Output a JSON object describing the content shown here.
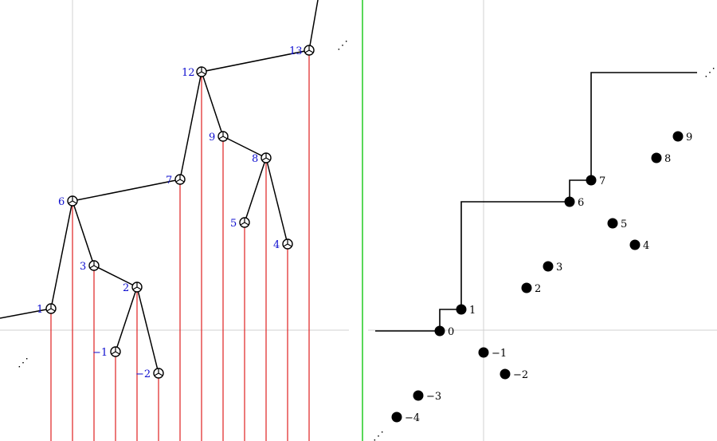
{
  "colors": {
    "axis": "#d0d0d0",
    "divider": "#22cc22",
    "drop_line": "#e02020",
    "tree_edge": "#000000",
    "tree_label": "#1010d0",
    "point": "#000000"
  },
  "tree_nodes": [
    {
      "id": "13",
      "label": "13"
    },
    {
      "id": "12",
      "label": "12"
    },
    {
      "id": "9",
      "label": "9"
    },
    {
      "id": "8",
      "label": "8"
    },
    {
      "id": "7",
      "label": "7"
    },
    {
      "id": "6",
      "label": "6"
    },
    {
      "id": "5",
      "label": "5"
    },
    {
      "id": "4",
      "label": "4"
    },
    {
      "id": "3",
      "label": "3"
    },
    {
      "id": "2",
      "label": "2"
    },
    {
      "id": "1",
      "label": "1"
    },
    {
      "id": "-1",
      "label": "−1"
    },
    {
      "id": "-2",
      "label": "−2"
    }
  ],
  "tree_edges": [
    [
      "12",
      "13"
    ],
    [
      "7",
      "12"
    ],
    [
      "9",
      "12"
    ],
    [
      "8",
      "9"
    ],
    [
      "5",
      "8"
    ],
    [
      "4",
      "8"
    ],
    [
      "6",
      "7"
    ],
    [
      "1",
      "6"
    ],
    [
      "3",
      "6"
    ],
    [
      "2",
      "3"
    ],
    [
      "-1",
      "2"
    ],
    [
      "-2",
      "2"
    ]
  ],
  "points": [
    {
      "id": "9",
      "label": "9"
    },
    {
      "id": "8",
      "label": "8"
    },
    {
      "id": "7",
      "label": "7"
    },
    {
      "id": "6",
      "label": "6"
    },
    {
      "id": "5",
      "label": "5"
    },
    {
      "id": "4",
      "label": "4"
    },
    {
      "id": "3",
      "label": "3"
    },
    {
      "id": "2",
      "label": "2"
    },
    {
      "id": "1",
      "label": "1"
    },
    {
      "id": "0",
      "label": "0"
    },
    {
      "id": "-1",
      "label": "−1"
    },
    {
      "id": "-2",
      "label": "−2"
    },
    {
      "id": "-3",
      "label": "−3"
    },
    {
      "id": "-4",
      "label": "−4"
    }
  ],
  "ellipsis_glyph": "⋰"
}
